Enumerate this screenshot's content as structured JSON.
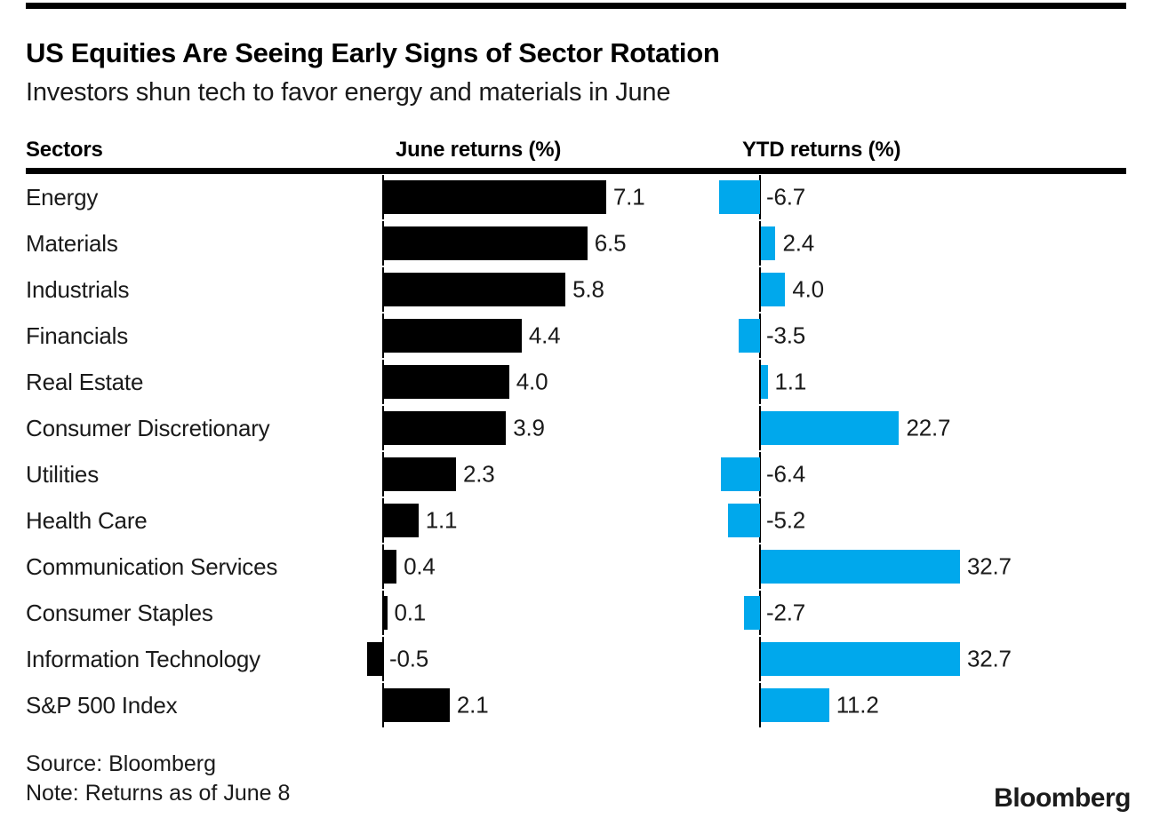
{
  "header": {
    "title": "US Equities Are Seeing Early Signs of Sector Rotation",
    "subtitle": "Investors shun tech to favor energy and materials in June"
  },
  "columns": {
    "sectors": "Sectors",
    "june": "June returns (%)",
    "ytd": "YTD returns (%)"
  },
  "chart_data": {
    "type": "bar",
    "orientation": "horizontal",
    "title": "US Equities Are Seeing Early Signs of Sector Rotation",
    "subtitle": "Investors shun tech to favor energy and materials in June",
    "categories": [
      "Energy",
      "Materials",
      "Industrials",
      "Financials",
      "Real Estate",
      "Consumer Discretionary",
      "Utilities",
      "Health Care",
      "Communication Services",
      "Consumer Staples",
      "Information Technology",
      "S&P 500 Index"
    ],
    "series": [
      {
        "name": "June returns (%)",
        "color": "#000000",
        "values": [
          7.1,
          6.5,
          5.8,
          4.4,
          4.0,
          3.9,
          2.3,
          1.1,
          0.4,
          0.1,
          -0.5,
          2.1
        ]
      },
      {
        "name": "YTD returns (%)",
        "color": "#00a8ec",
        "values": [
          -6.7,
          2.4,
          4.0,
          -3.5,
          1.1,
          22.7,
          -6.4,
          -5.2,
          32.7,
          -2.7,
          32.7,
          11.2
        ]
      }
    ],
    "value_labels": true,
    "grid": false,
    "legend": "column headers",
    "xlim_june": [
      -0.5,
      7.1
    ],
    "xlim_ytd": [
      -6.7,
      32.7
    ]
  },
  "footer": {
    "source": "Source: Bloomberg",
    "note": "Note: Returns as of June 8",
    "logo": "Bloomberg"
  }
}
